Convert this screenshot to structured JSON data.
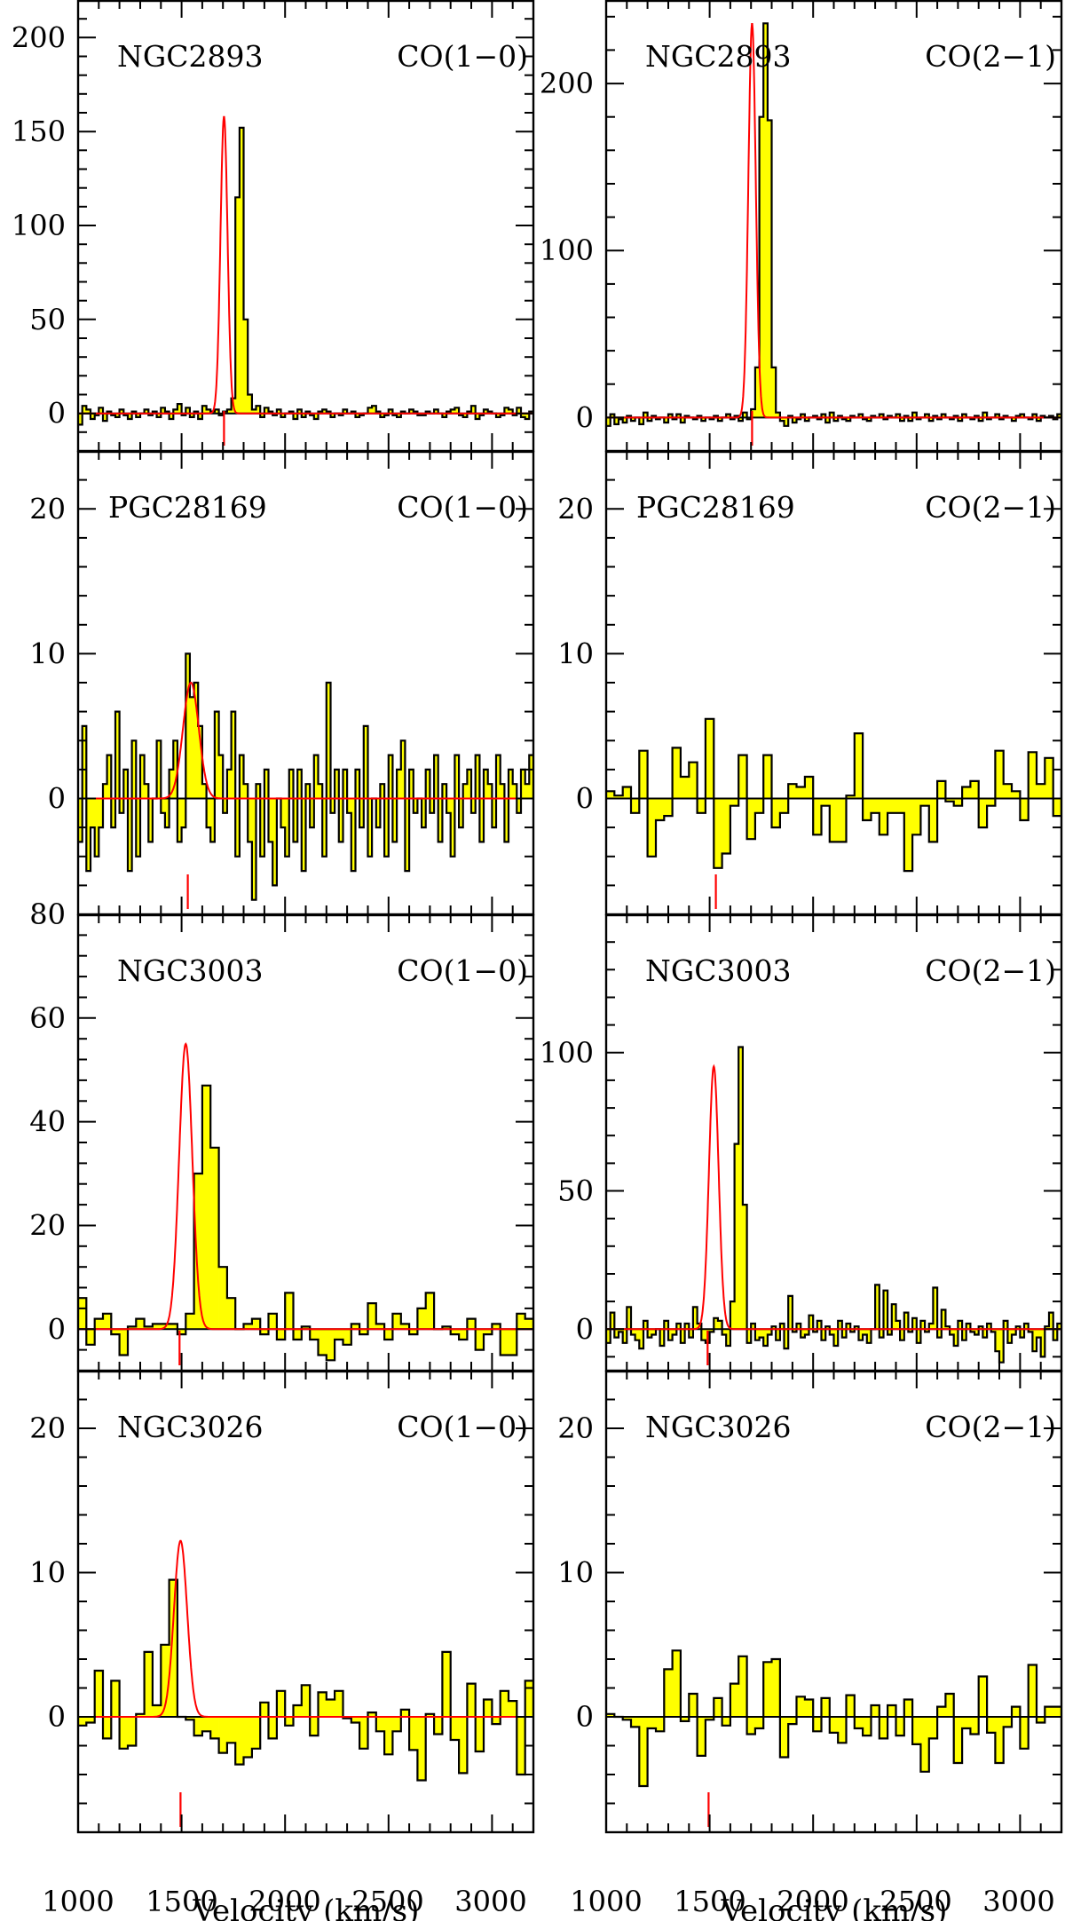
{
  "figure": {
    "x_axis_title": "Velocity (km/s)",
    "x_tick_labels": [
      "1000",
      "1500",
      "2000",
      "2500",
      "3000"
    ],
    "colors": {
      "spectrum_fill": "#ffff00",
      "spectrum_line": "#000000",
      "fit_line": "#ff0000"
    }
  },
  "chart_data": [
    {
      "type": "histogram",
      "galaxy": "NGC2893",
      "line": "CO(1-0)",
      "xlim": [
        1000,
        3200
      ],
      "ylim": [
        -20,
        220
      ],
      "y_tick_labels": [
        "0",
        "50",
        "100",
        "150",
        "200"
      ],
      "bin_width": 20,
      "x_start": 1000,
      "values": [
        -6,
        4,
        2,
        -3,
        -1,
        3,
        -4,
        1,
        -1,
        -2,
        2,
        -1,
        -3,
        1,
        -2,
        0,
        2,
        -1,
        1,
        -2,
        3,
        1,
        -3,
        2,
        5,
        -1,
        3,
        -2,
        1,
        -3,
        4,
        2,
        1,
        2,
        -1,
        1,
        2,
        8,
        115,
        152,
        50,
        10,
        2,
        4,
        -2,
        3,
        1,
        -1,
        2,
        -2,
        0,
        1,
        -3,
        2,
        -2,
        1,
        -1,
        -3,
        1,
        2,
        1,
        -2,
        0,
        -1,
        2,
        0,
        1,
        -2,
        -1,
        0,
        3,
        4,
        1,
        -2,
        -1,
        2,
        -1,
        -2,
        1,
        0,
        2,
        1,
        -1,
        -1,
        1,
        0,
        2,
        0,
        -2,
        1,
        2,
        3,
        -1,
        -2,
        1,
        4,
        -3,
        -1,
        2,
        1,
        0,
        -2,
        -1,
        3,
        2,
        -1,
        3,
        -2,
        -3,
        1
      ],
      "fit": {
        "center": 1705,
        "peak": 158,
        "fwhm": 40
      },
      "vsys": 1705
    },
    {
      "type": "histogram",
      "galaxy": "NGC2893",
      "line": "CO(2-1)",
      "xlim": [
        1000,
        3200
      ],
      "ylim": [
        -20,
        250
      ],
      "y_tick_labels": [
        "0",
        "100",
        "200"
      ],
      "bin_width": 20,
      "x_start": 1000,
      "values": [
        -5,
        2,
        -4,
        -1,
        -3,
        1,
        -2,
        0,
        -4,
        3,
        -2,
        1,
        -1,
        0,
        -3,
        2,
        -1,
        2,
        -3,
        1,
        0,
        -1,
        1,
        -2,
        0,
        -1,
        1,
        -2,
        0,
        2,
        -1,
        1,
        -2,
        3,
        -1,
        5,
        30,
        180,
        236,
        178,
        30,
        3,
        -2,
        -5,
        1,
        -3,
        -1,
        2,
        -2,
        0,
        1,
        -1,
        2,
        -3,
        3,
        -2,
        1,
        -1,
        -2,
        1,
        0,
        2,
        -1,
        -2,
        1,
        0,
        2,
        -1,
        1,
        0,
        2,
        -2,
        1,
        -2,
        3,
        -1,
        0,
        2,
        -2,
        1,
        -1,
        2,
        0,
        -1,
        1,
        -2,
        2,
        0,
        -1,
        1,
        -2,
        3,
        -1,
        0,
        2,
        -1,
        1,
        0,
        -2,
        1,
        2,
        0,
        -1,
        2,
        -2,
        1,
        0,
        1,
        -1,
        2
      ],
      "fit": {
        "center": 1705,
        "peak": 236,
        "fwhm": 42
      },
      "vsys": 1705
    },
    {
      "type": "histogram",
      "galaxy": "PGC28169",
      "line": "CO(1-0)",
      "xlim": [
        1000,
        3200
      ],
      "ylim": [
        -8,
        24
      ],
      "y_tick_labels": [
        "0",
        "10",
        "20"
      ],
      "bin_width": 20,
      "x_start": 1000,
      "values": [
        -3,
        5,
        -5,
        -2,
        -4,
        -2,
        1,
        3,
        -2,
        6,
        -1,
        2,
        -5,
        4,
        -4,
        3,
        1,
        -3,
        0,
        4,
        -1,
        -2,
        2,
        4,
        -3,
        -2,
        10,
        7,
        8,
        5,
        1,
        -2,
        -3,
        6,
        3,
        -1,
        2,
        6,
        -4,
        3,
        1,
        -3,
        -7,
        1,
        -4,
        2,
        -3,
        -6,
        0,
        -2,
        -4,
        2,
        -3,
        2,
        -5,
        1,
        -2,
        3,
        1,
        -4,
        8,
        -1,
        2,
        -3,
        2,
        -1,
        -5,
        2,
        -2,
        5,
        -4,
        0,
        -2,
        1,
        -4,
        3,
        -3,
        2,
        4,
        -5,
        2,
        -1,
        0,
        -2,
        2,
        -1,
        3,
        -3,
        1,
        -1,
        -4,
        3,
        -2,
        1,
        2,
        -1,
        3,
        -3,
        2,
        1,
        -2,
        3,
        1,
        -3,
        2,
        1,
        -1,
        2,
        1,
        3
      ],
      "fit": {
        "center": 1545,
        "peak": 8,
        "fwhm": 90
      },
      "vsys": 1530
    },
    {
      "type": "histogram",
      "galaxy": "PGC28169",
      "line": "CO(2-1)",
      "xlim": [
        1000,
        3200
      ],
      "ylim": [
        -8,
        24
      ],
      "y_tick_labels": [
        "0",
        "10",
        "20"
      ],
      "bin_width": 40,
      "x_start": 1000,
      "values": [
        0.5,
        0.2,
        0.8,
        -1,
        3.3,
        -4,
        -1.5,
        -1.2,
        3.5,
        1.5,
        2.5,
        -1,
        5.5,
        -4.8,
        -3.8,
        -0.5,
        3,
        -2.8,
        -1,
        3,
        -2,
        -1,
        1,
        0.8,
        1.5,
        -2.5,
        -0.5,
        -3,
        -3,
        0.2,
        4.5,
        -1.5,
        -1,
        -2.5,
        -1,
        -1,
        -5,
        -2.5,
        -0.5,
        -3,
        1.2,
        -0.2,
        -0.5,
        0.8,
        1.2,
        -2,
        -0.5,
        3.3,
        1,
        0.5,
        -1.5,
        3.2,
        1,
        2.8,
        -1.2,
        1.2
      ],
      "vsys": 1530
    },
    {
      "type": "histogram",
      "galaxy": "NGC3003",
      "line": "CO(1-0)",
      "xlim": [
        1000,
        3200
      ],
      "ylim": [
        -8,
        80
      ],
      "y_tick_labels": [
        "0",
        "20",
        "40",
        "60",
        "80"
      ],
      "bin_width": 40,
      "x_start": 1000,
      "values": [
        6,
        -3,
        2,
        3,
        -1,
        -5,
        0.5,
        2,
        0.5,
        1,
        1,
        1,
        -1,
        3,
        30,
        47,
        35,
        12,
        6,
        0,
        1,
        2,
        -1,
        3,
        -2,
        7,
        -2,
        0.5,
        -2,
        -5,
        -6,
        -2,
        -3,
        1,
        -1,
        5,
        1,
        -2,
        3,
        1,
        -1,
        4,
        7,
        0,
        0.5,
        -1,
        -2,
        2,
        -4,
        -1,
        1,
        -5,
        -5,
        3,
        2,
        2,
        2,
        1,
        -1,
        -3,
        0.5,
        -2
      ],
      "fit": {
        "center": 1520,
        "peak": 55,
        "fwhm": 75
      },
      "vsys": 1490
    },
    {
      "type": "histogram",
      "galaxy": "NGC3003",
      "line": "CO(2-1)",
      "xlim": [
        1000,
        3200
      ],
      "ylim": [
        -15,
        150
      ],
      "y_tick_labels": [
        "0",
        "50",
        "100"
      ],
      "bin_width": 20,
      "x_start": 1000,
      "values": [
        -5,
        6,
        -3,
        -1,
        -5,
        8,
        -2,
        -4,
        -7,
        3,
        -3,
        -2,
        0,
        -6,
        3,
        -4,
        -2,
        2,
        -5,
        2,
        -3,
        8,
        2,
        -4,
        -5,
        -1,
        4,
        3,
        -2,
        -6,
        10,
        67,
        102,
        45,
        -5,
        2,
        -4,
        -3,
        -6,
        -2,
        1,
        -4,
        2,
        -7,
        12,
        -1,
        2,
        -3,
        -2,
        5,
        -1,
        3,
        -4,
        1,
        -2,
        -6,
        3,
        -3,
        2,
        -1,
        1,
        -4,
        -2,
        -5,
        0,
        16,
        -3,
        14,
        -2,
        9,
        3,
        -4,
        6,
        -1,
        4,
        -5,
        3,
        -1,
        2,
        15,
        -3,
        7,
        1,
        -2,
        -6,
        3,
        -4,
        2,
        -1,
        -2,
        1,
        -3,
        2,
        -1,
        -8,
        -12,
        3,
        -5,
        -2,
        1,
        -3,
        2,
        -1,
        -8,
        -3,
        -10,
        1,
        6,
        -4,
        2
      ],
      "fit": {
        "center": 1520,
        "peak": 95,
        "fwhm": 55
      },
      "vsys": 1490
    },
    {
      "type": "histogram",
      "galaxy": "NGC3026",
      "line": "CO(1-0)",
      "xlim": [
        1000,
        3200
      ],
      "ylim": [
        -8,
        24
      ],
      "y_tick_labels": [
        "0",
        "10",
        "20"
      ],
      "bin_width": 40,
      "x_start": 1000,
      "values": [
        -0.6,
        -0.4,
        3.2,
        -1.5,
        2.5,
        -2.2,
        -2,
        0.2,
        4.5,
        0.8,
        5,
        9.5,
        0,
        -0.2,
        -1.3,
        -1,
        -1.5,
        -2.5,
        -1.8,
        -3.3,
        -2.8,
        -2.2,
        1,
        -1.5,
        1.8,
        -0.6,
        0.8,
        2.2,
        -1.3,
        1.7,
        1.2,
        1.8,
        -0.1,
        -0.4,
        -2.2,
        0.3,
        -1,
        -2.6,
        -1,
        0.5,
        -2.3,
        -4.4,
        0.2,
        -1.2,
        4.5,
        -1.6,
        -3.9,
        2.3,
        -2.4,
        1.2,
        -0.5,
        1.8,
        1.1,
        -4,
        2.5
      ],
      "fit": {
        "center": 1495,
        "peak": 12.2,
        "fwhm": 75
      },
      "vsys": 1495
    },
    {
      "type": "histogram",
      "galaxy": "NGC3026",
      "line": "CO(2-1)",
      "xlim": [
        1000,
        3200
      ],
      "ylim": [
        -8,
        24
      ],
      "y_tick_labels": [
        "0",
        "10",
        "20"
      ],
      "bin_width": 40,
      "x_start": 1000,
      "values": [
        0.2,
        0,
        -0.2,
        -0.7,
        -4.8,
        -0.8,
        -1,
        3.3,
        4.6,
        -0.3,
        1.6,
        -2.7,
        -0.2,
        1.3,
        -0.6,
        2.3,
        4.2,
        -1.2,
        -0.8,
        3.8,
        4,
        -2.8,
        -0.5,
        1.4,
        1.2,
        -1,
        1.3,
        -1.1,
        -1.8,
        1.5,
        -0.8,
        -1.3,
        0.8,
        -1.5,
        0.8,
        -1.3,
        1.2,
        -1.9,
        -3.8,
        -1.5,
        0.7,
        1.6,
        -3.2,
        -0.8,
        -1.2,
        2.8,
        -1.1,
        -3.2,
        -0.7,
        0.7,
        -2.2,
        3.6,
        -0.4,
        0.7,
        0.7
      ],
      "vsys": 1495
    }
  ]
}
